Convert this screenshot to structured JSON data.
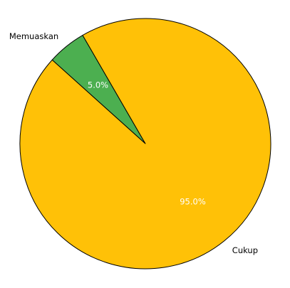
{
  "chart_data": {
    "type": "pie",
    "title": "",
    "start_angle_deg": 120,
    "direction": "counterclockwise",
    "slices": [
      {
        "label": "Memuaskan",
        "value": 5.0,
        "percent_label": "5.0%",
        "color": "#4caf50"
      },
      {
        "label": "Cukup",
        "value": 95.0,
        "percent_label": "95.0%",
        "color": "#ffc107"
      }
    ],
    "edge_color": "#000000",
    "legend": "none"
  }
}
